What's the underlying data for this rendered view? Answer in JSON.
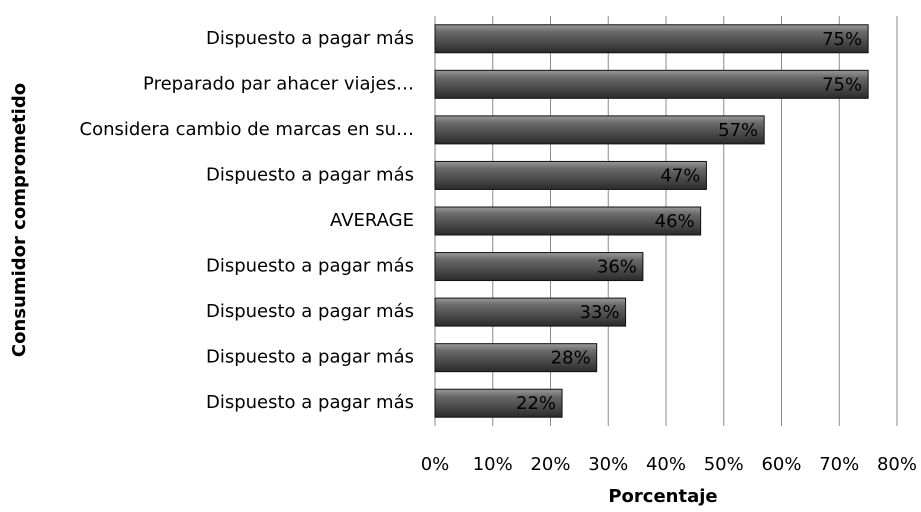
{
  "chart_data": {
    "type": "barh",
    "xlabel": "Porcentaje",
    "ylabel": "Consumidor comprometido",
    "categories": [
      "Dispuesto a pagar más",
      "Preparado par ahacer viajes…",
      "Considera cambio de marcas en su…",
      "Dispuesto a pagar más",
      "AVERAGE",
      "Dispuesto a pagar más",
      "Dispuesto a pagar más",
      "Dispuesto a pagar más",
      "Dispuesto a pagar más"
    ],
    "values": [
      75,
      75,
      57,
      47,
      46,
      36,
      33,
      28,
      22
    ],
    "value_labels": [
      "75%",
      "75%",
      "57%",
      "47%",
      "46%",
      "36%",
      "33%",
      "28%",
      "22%"
    ],
    "color": "#555555",
    "xlim": [
      0,
      80
    ],
    "xticks": [
      {
        "value": 0,
        "label": "0%"
      },
      {
        "value": 10,
        "label": "10%"
      },
      {
        "value": 20,
        "label": "20%"
      },
      {
        "value": 30,
        "label": "30%"
      },
      {
        "value": 40,
        "label": "40%"
      },
      {
        "value": 50,
        "label": "50%"
      },
      {
        "value": 60,
        "label": "60%"
      },
      {
        "value": 70,
        "label": "70%"
      },
      {
        "value": 80,
        "label": "80%"
      }
    ],
    "grid": true
  }
}
